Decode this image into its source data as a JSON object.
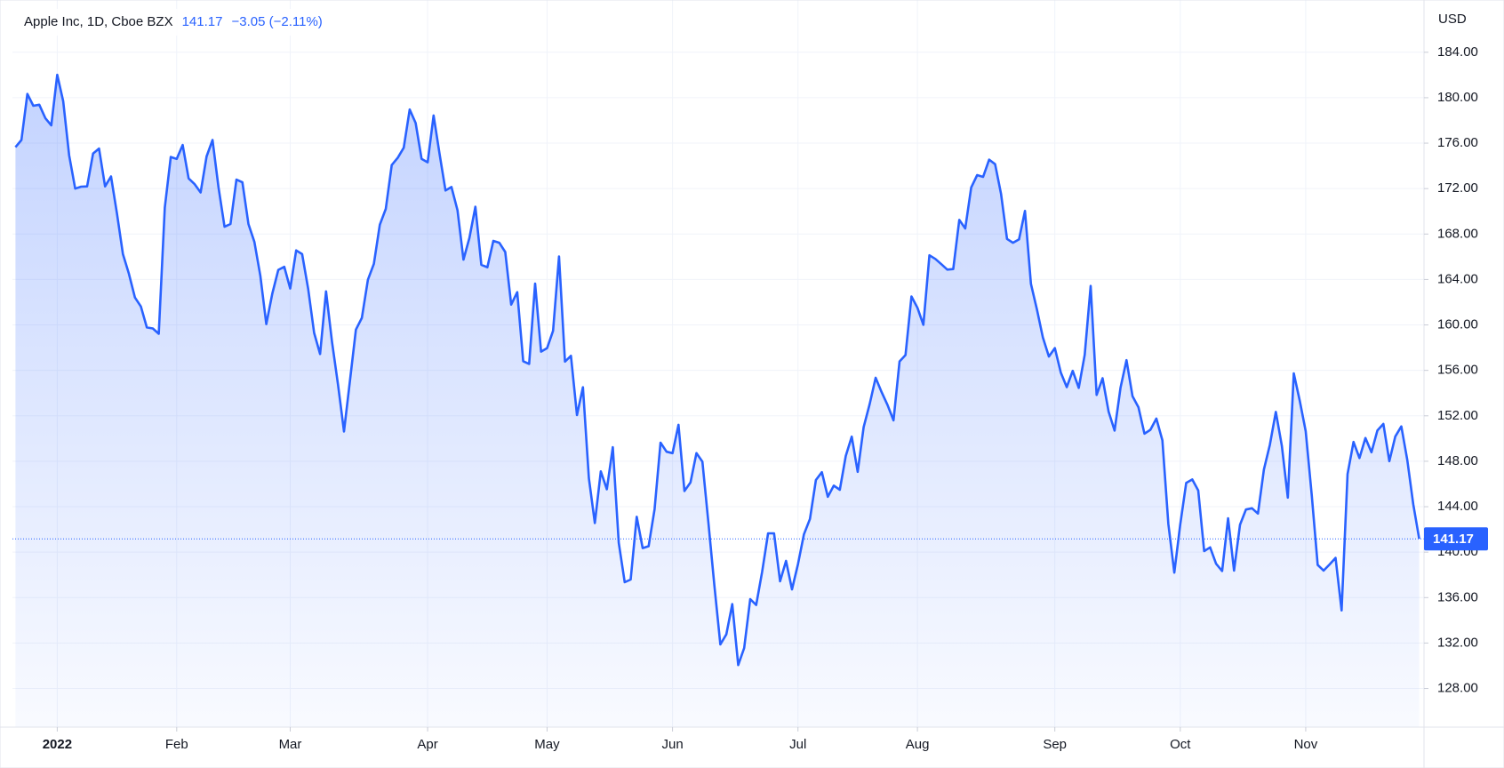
{
  "chart_data": {
    "type": "area",
    "title": "Apple Inc, 1D, Cboe BZX",
    "last_price": 141.17,
    "change": "−3.05 (−2.11%)",
    "y_unit": "USD",
    "color": "#2962ff",
    "grid": true,
    "values": [
      175.64,
      176.28,
      180.33,
      179.29,
      179.38,
      178.2,
      177.57,
      182.01,
      179.7,
      174.92,
      172.0,
      172.17,
      172.19,
      175.08,
      175.53,
      172.19,
      173.07,
      169.8,
      166.23,
      164.51,
      162.41,
      161.62,
      159.78,
      159.69,
      159.22,
      170.33,
      174.78,
      174.61,
      175.84,
      172.9,
      172.39,
      171.66,
      174.83,
      176.28,
      172.12,
      168.64,
      168.88,
      172.79,
      172.55,
      168.88,
      167.3,
      164.32,
      160.07,
      162.74,
      164.85,
      165.12,
      163.2,
      166.56,
      166.23,
      163.17,
      159.3,
      157.44,
      162.95,
      158.52,
      154.73,
      150.62,
      155.09,
      159.59,
      160.62,
      163.98,
      165.38,
      168.82,
      170.21,
      174.07,
      174.72,
      175.6,
      178.96,
      177.77,
      174.61,
      174.31,
      178.44,
      175.06,
      171.83,
      172.14,
      170.09,
      165.75,
      167.66,
      170.4,
      165.29,
      165.07,
      167.4,
      167.23,
      166.42,
      161.79,
      162.88,
      156.8,
      156.57,
      163.64,
      157.65,
      157.96,
      159.48,
      166.02,
      156.77,
      157.28,
      152.06,
      154.51,
      146.5,
      142.56,
      147.11,
      145.54,
      149.24,
      140.82,
      137.35,
      137.59,
      143.11,
      140.36,
      140.52,
      143.78,
      149.64,
      148.84,
      148.71,
      151.21,
      145.38,
      146.14,
      148.71,
      147.96,
      142.64,
      137.13,
      131.88,
      132.76,
      135.43,
      130.06,
      131.56,
      135.87,
      135.35,
      138.27,
      141.66,
      141.66,
      137.44,
      139.23,
      136.72,
      138.93,
      141.56,
      142.92,
      146.35,
      147.04,
      144.87,
      145.86,
      145.49,
      148.47,
      150.17,
      147.07,
      151.0,
      153.04,
      155.35,
      154.09,
      152.95,
      151.6,
      156.79,
      157.35,
      162.51,
      161.51,
      160.01,
      166.13,
      165.81,
      165.35,
      164.87,
      164.92,
      169.24,
      168.49,
      172.1,
      173.19,
      173.03,
      174.55,
      174.15,
      171.52,
      167.57,
      167.23,
      167.53,
      170.03,
      163.62,
      161.38,
      158.91,
      157.22,
      157.96,
      155.81,
      154.53,
      155.96,
      154.46,
      157.37,
      163.43,
      153.84,
      155.31,
      152.37,
      150.7,
      154.48,
      156.9,
      153.72,
      152.74,
      150.43,
      150.77,
      151.76,
      149.84,
      142.48,
      138.2,
      142.45,
      146.1,
      146.4,
      145.43,
      140.09,
      140.42,
      138.98,
      138.34,
      142.99,
      138.38,
      142.41,
      143.75,
      143.86,
      143.39,
      147.27,
      149.45,
      152.34,
      149.35,
      144.8,
      155.74,
      153.34,
      150.65,
      145.03,
      138.88,
      138.38,
      138.92,
      139.5,
      134.87,
      146.87,
      149.7,
      148.28,
      150.04,
      148.79,
      150.72,
      151.29,
      148.01,
      150.18,
      151.07,
      148.11,
      144.22,
      141.17
    ],
    "xlim": [
      -0.5,
      235.8
    ],
    "xticks": [
      {
        "value": 7,
        "label": "2022"
      },
      {
        "value": 27,
        "label": "Feb"
      },
      {
        "value": 46,
        "label": "Mar"
      },
      {
        "value": 69,
        "label": "Apr"
      },
      {
        "value": 89,
        "label": "May"
      },
      {
        "value": 110,
        "label": "Jun"
      },
      {
        "value": 131,
        "label": "Jul"
      },
      {
        "value": 151,
        "label": "Aug"
      },
      {
        "value": 174,
        "label": "Sep"
      },
      {
        "value": 195,
        "label": "Oct"
      },
      {
        "value": 216,
        "label": "Nov"
      }
    ],
    "ylim": [
      124.6,
      188.6
    ],
    "yticks": [
      {
        "value": 128,
        "label": "128.00"
      },
      {
        "value": 132,
        "label": "132.00"
      },
      {
        "value": 136,
        "label": "136.00"
      },
      {
        "value": 140,
        "label": "140.00"
      },
      {
        "value": 144,
        "label": "144.00"
      },
      {
        "value": 148,
        "label": "148.00"
      },
      {
        "value": 152,
        "label": "152.00"
      },
      {
        "value": 156,
        "label": "156.00"
      },
      {
        "value": 160,
        "label": "160.00"
      },
      {
        "value": 164,
        "label": "164.00"
      },
      {
        "value": 168,
        "label": "168.00"
      },
      {
        "value": 172,
        "label": "172.00"
      },
      {
        "value": 176,
        "label": "176.00"
      },
      {
        "value": 180,
        "label": "180.00"
      },
      {
        "value": 184,
        "label": "184.00"
      }
    ]
  }
}
